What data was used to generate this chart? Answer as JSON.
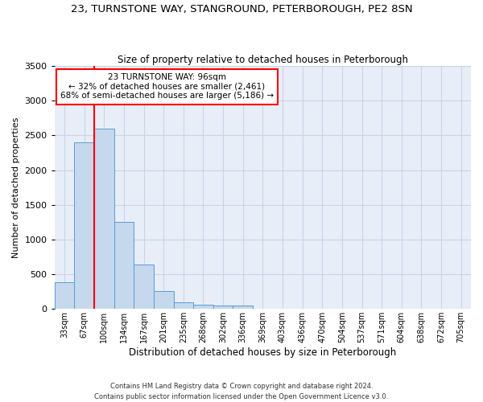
{
  "title_line1": "23, TURNSTONE WAY, STANGROUND, PETERBOROUGH, PE2 8SN",
  "title_line2": "Size of property relative to detached houses in Peterborough",
  "xlabel": "Distribution of detached houses by size in Peterborough",
  "ylabel": "Number of detached properties",
  "footer_line1": "Contains HM Land Registry data © Crown copyright and database right 2024.",
  "footer_line2": "Contains public sector information licensed under the Open Government Licence v3.0.",
  "categories": [
    "33sqm",
    "67sqm",
    "100sqm",
    "134sqm",
    "167sqm",
    "201sqm",
    "235sqm",
    "268sqm",
    "302sqm",
    "336sqm",
    "369sqm",
    "403sqm",
    "436sqm",
    "470sqm",
    "504sqm",
    "537sqm",
    "571sqm",
    "604sqm",
    "638sqm",
    "672sqm",
    "705sqm"
  ],
  "values": [
    390,
    2400,
    2600,
    1250,
    640,
    260,
    100,
    60,
    55,
    45,
    0,
    0,
    0,
    0,
    0,
    0,
    0,
    0,
    0,
    0,
    0
  ],
  "bar_color": "#c5d8ee",
  "bar_edge_color": "#5b9bd5",
  "grid_color": "#c8d4e6",
  "background_color": "#e8eef8",
  "annotation_line1": "23 TURNSTONE WAY: 96sqm",
  "annotation_line2": "← 32% of detached houses are smaller (2,461)",
  "annotation_line3": "68% of semi-detached houses are larger (5,186) →",
  "annotation_box_color": "white",
  "annotation_box_edge_color": "red",
  "vline_color": "red",
  "vline_position": 1.5,
  "ylim": [
    0,
    3500
  ],
  "yticks": [
    0,
    500,
    1000,
    1500,
    2000,
    2500,
    3000,
    3500
  ]
}
